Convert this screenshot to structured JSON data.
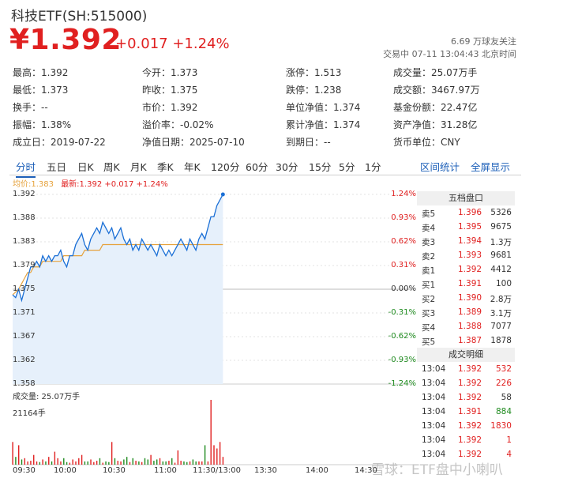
{
  "header": {
    "title": "科技ETF(SH:515000)",
    "price": "¥1.392",
    "change": "+0.017 +1.24%",
    "fans": "6.69 万球友关注",
    "trade_time": "交易中 07-11 13:04:43 北京时间"
  },
  "stats": [
    {
      "label": "最高：",
      "value": "1.392",
      "tone": "red"
    },
    {
      "label": "今开：",
      "value": "1.373",
      "tone": "green"
    },
    {
      "label": "涨停：",
      "value": "1.513",
      "tone": "red"
    },
    {
      "label": "成交量：",
      "value": "25.07万手",
      "tone": "plain"
    },
    {
      "label": "最低：",
      "value": "1.373",
      "tone": "green"
    },
    {
      "label": "昨收：",
      "value": "1.375",
      "tone": "plain"
    },
    {
      "label": "跌停：",
      "value": "1.238",
      "tone": "green"
    },
    {
      "label": "成交额：",
      "value": "3467.97万",
      "tone": "plain"
    },
    {
      "label": "换手：",
      "value": "--",
      "tone": "plain"
    },
    {
      "label": "市价：",
      "value": "1.392",
      "tone": "plain"
    },
    {
      "label": "单位净值：",
      "value": "1.374",
      "tone": "plain"
    },
    {
      "label": "基金份额：",
      "value": "22.47亿",
      "tone": "plain"
    },
    {
      "label": "振幅：",
      "value": "1.38%",
      "tone": "plain"
    },
    {
      "label": "溢价率：",
      "value": "-0.02%",
      "tone": "plain"
    },
    {
      "label": "累计净值：",
      "value": "1.374",
      "tone": "plain"
    },
    {
      "label": "资产净值：",
      "value": "31.28亿",
      "tone": "plain"
    },
    {
      "label": "成立日：",
      "value": "2019-07-22",
      "tone": "plain"
    },
    {
      "label": "净值日期：",
      "value": "2025-07-10",
      "tone": "plain"
    },
    {
      "label": "到期日：",
      "value": "--",
      "tone": "plain"
    },
    {
      "label": "货币单位：",
      "value": "CNY",
      "tone": "plain"
    }
  ],
  "tabs": [
    "分时",
    "五日",
    "日K",
    "周K",
    "月K",
    "季K",
    "年K",
    "120分",
    "60分",
    "30分",
    "15分",
    "5分",
    "1分"
  ],
  "tab_links": [
    "区间统计",
    "全屏显示"
  ],
  "legend": {
    "avg": "均价:1.383",
    "latest": "最新:1.392 +0.017 +1.24%"
  },
  "chart_data": {
    "type": "line",
    "y_ticks": [
      "1.392",
      "1.388",
      "1.383",
      "1.379",
      "1.375",
      "1.371",
      "1.367",
      "1.362",
      "1.358"
    ],
    "pct_ticks": [
      "1.24%",
      "0.93%",
      "0.62%",
      "0.31%",
      "0.00%",
      "-0.31%",
      "-0.62%",
      "-0.93%",
      "-1.24%"
    ],
    "x_ticks": [
      "09:30",
      "10:00",
      "10:30",
      "11:00",
      "11:30/13:00",
      "13:30",
      "14:00",
      "14:30"
    ],
    "ylim": [
      1.358,
      1.392
    ],
    "prev_close": 1.375,
    "price_series": [
      1.374,
      1.3735,
      1.375,
      1.373,
      1.375,
      1.377,
      1.379,
      1.379,
      1.38,
      1.379,
      1.381,
      1.38,
      1.381,
      1.38,
      1.381,
      1.381,
      1.382,
      1.38,
      1.379,
      1.381,
      1.381,
      1.383,
      1.384,
      1.385,
      1.383,
      1.382,
      1.384,
      1.385,
      1.386,
      1.385,
      1.387,
      1.386,
      1.385,
      1.386,
      1.384,
      1.385,
      1.386,
      1.384,
      1.383,
      1.384,
      1.382,
      1.383,
      1.382,
      1.384,
      1.383,
      1.382,
      1.383,
      1.382,
      1.381,
      1.383,
      1.382,
      1.381,
      1.382,
      1.381,
      1.382,
      1.383,
      1.384,
      1.383,
      1.382,
      1.384,
      1.383,
      1.382,
      1.384,
      1.385,
      1.384,
      1.386,
      1.388,
      1.388,
      1.39,
      1.391,
      1.392
    ],
    "avg_series": [
      1.374,
      1.3745,
      1.375,
      1.376,
      1.377,
      1.378,
      1.378,
      1.379,
      1.379,
      1.379,
      1.38,
      1.38,
      1.38,
      1.38,
      1.38,
      1.38,
      1.38,
      1.381,
      1.381,
      1.381,
      1.381,
      1.381,
      1.381,
      1.381,
      1.382,
      1.382,
      1.382,
      1.382,
      1.382,
      1.382,
      1.383,
      1.383,
      1.383,
      1.383,
      1.383,
      1.383,
      1.383,
      1.383,
      1.383,
      1.383,
      1.383,
      1.383,
      1.383,
      1.383,
      1.383,
      1.383,
      1.383,
      1.383,
      1.383,
      1.383,
      1.383,
      1.383,
      1.383,
      1.383,
      1.383,
      1.383,
      1.383,
      1.383,
      1.383,
      1.383,
      1.383,
      1.383,
      1.383,
      1.383,
      1.383,
      1.383,
      1.383,
      1.383,
      1.383,
      1.383,
      1.383
    ],
    "volume_label": "成交量: 25.07万手",
    "volume_max_label": "21164手",
    "volume_series": [
      0.35,
      0.12,
      0.3,
      0.08,
      0.1,
      0.05,
      0.06,
      0.15,
      0.05,
      0.04,
      0.08,
      0.05,
      0.12,
      0.05,
      0.2,
      0.1,
      0.05,
      0.1,
      0.04,
      0.03,
      0.08,
      0.05,
      0.1,
      0.15,
      0.05,
      0.05,
      0.08,
      0.04,
      0.06,
      0.1,
      0.03,
      0.05,
      0.04,
      0.35,
      0.1,
      0.06,
      0.05,
      0.08,
      0.12,
      0.04,
      0.1,
      0.06,
      0.05,
      0.04,
      0.1,
      0.08,
      0.15,
      0.06,
      0.08,
      0.1,
      0.05,
      0.05,
      0.06,
      0.1,
      0.03,
      0.22,
      0.06,
      0.05,
      0.04,
      0.05,
      0.08,
      0.05,
      0.05,
      0.05,
      0.3,
      0.05,
      1.0,
      0.3,
      0.25,
      0.35,
      0.12
    ]
  },
  "order_book": {
    "title": "五档盘口",
    "rows": [
      {
        "label": "卖5",
        "price": "1.396",
        "vol": "5326"
      },
      {
        "label": "卖4",
        "price": "1.395",
        "vol": "9675"
      },
      {
        "label": "卖3",
        "price": "1.394",
        "vol": "1.3万"
      },
      {
        "label": "卖2",
        "price": "1.393",
        "vol": "9681"
      },
      {
        "label": "卖1",
        "price": "1.392",
        "vol": "4412"
      },
      {
        "label": "买1",
        "price": "1.391",
        "vol": "100"
      },
      {
        "label": "买2",
        "price": "1.390",
        "vol": "2.8万"
      },
      {
        "label": "买3",
        "price": "1.389",
        "vol": "3.1万"
      },
      {
        "label": "买4",
        "price": "1.388",
        "vol": "7077"
      },
      {
        "label": "买5",
        "price": "1.387",
        "vol": "1878"
      }
    ]
  },
  "trade_detail": {
    "title": "成交明细",
    "rows": [
      {
        "time": "13:04",
        "price": "1.392",
        "vol": "532",
        "tone": "red"
      },
      {
        "time": "13:04",
        "price": "1.392",
        "vol": "226",
        "tone": "red"
      },
      {
        "time": "13:04",
        "price": "1.392",
        "vol": "58",
        "tone": "plain"
      },
      {
        "time": "13:04",
        "price": "1.391",
        "vol": "884",
        "tone": "green"
      },
      {
        "time": "13:04",
        "price": "1.392",
        "vol": "1830",
        "tone": "red"
      },
      {
        "time": "13:04",
        "price": "1.392",
        "vol": "1",
        "tone": "red"
      },
      {
        "time": "13:04",
        "price": "1.392",
        "vol": "4",
        "tone": "red"
      }
    ]
  },
  "watermark": "雪球：ETF盘中小喇叭",
  "colors": {
    "up": "#e02020",
    "down": "#1e8a1e",
    "price_line": "#1a6fd6",
    "avg_line": "#e6a23c",
    "fill": "#e6f0fb",
    "link": "#1c5fb8"
  }
}
